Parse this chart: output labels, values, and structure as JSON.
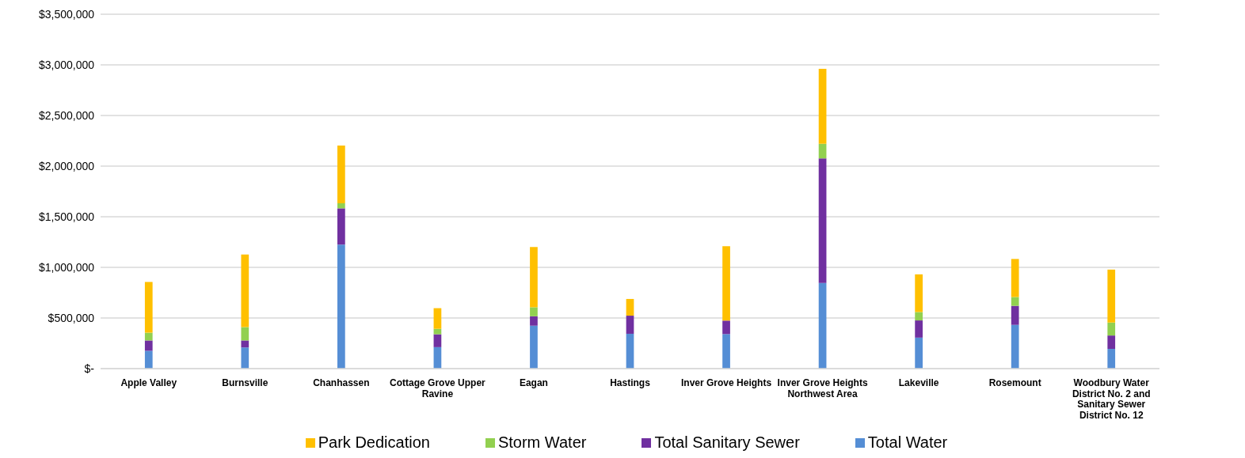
{
  "chart_data": {
    "type": "bar",
    "stacked": true,
    "categories": [
      "Apple Valley",
      "Burnsville",
      "Chanhassen",
      "Cottage Grove Upper Ravine",
      "Eagan",
      "Hastings",
      "Inver Grove Heights",
      "Inver Grove Heights Northwest Area",
      "Lakeville",
      "Rosemount",
      "Woodbury Water District No. 2 and Sanitary Sewer District No. 12"
    ],
    "series": [
      {
        "name": "Total Water",
        "color": "#558ed5",
        "values": [
          176000,
          209000,
          1225000,
          212000,
          424000,
          344000,
          341000,
          845000,
          306000,
          432000,
          195000
        ]
      },
      {
        "name": "Total Sanitary Sewer",
        "color": "#7030a0",
        "values": [
          102000,
          69000,
          358000,
          127000,
          93000,
          179000,
          133000,
          1232000,
          170000,
          188000,
          132000
        ]
      },
      {
        "name": "Storm Water",
        "color": "#92d050",
        "values": [
          77000,
          132000,
          50000,
          54000,
          89000,
          0,
          0,
          143000,
          83000,
          87000,
          128000
        ]
      },
      {
        "name": "Park Dedication",
        "color": "#ffc000",
        "values": [
          501000,
          716000,
          570000,
          204000,
          595000,
          165000,
          735000,
          741000,
          372000,
          376000,
          523000
        ]
      }
    ],
    "ylim": [
      0,
      3500000
    ],
    "yticks": [
      {
        "value": 0,
        "label": "$-"
      },
      {
        "value": 500000,
        "label": "$500,000"
      },
      {
        "value": 1000000,
        "label": "$1,000,000"
      },
      {
        "value": 1500000,
        "label": "$1,500,000"
      },
      {
        "value": 2000000,
        "label": "$2,000,000"
      },
      {
        "value": 2500000,
        "label": "$2,500,000"
      },
      {
        "value": 3000000,
        "label": "$3,000,000"
      },
      {
        "value": 3500000,
        "label": "$3,500,000"
      }
    ],
    "grid": "y",
    "legend": "bottom"
  }
}
